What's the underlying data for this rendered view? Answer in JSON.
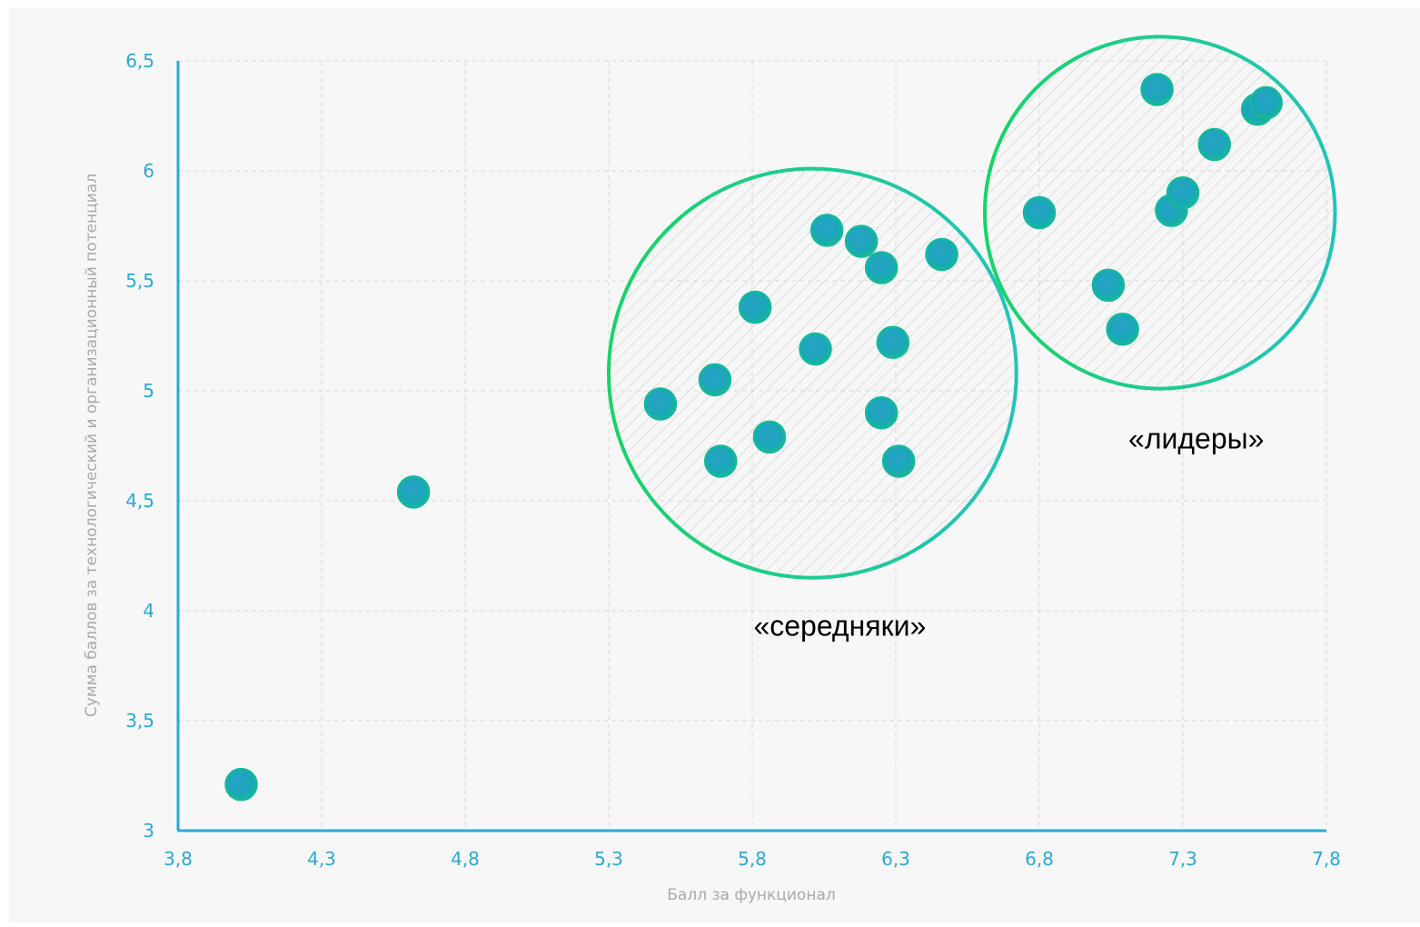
{
  "colors": {
    "panel": "#f7f7f7",
    "axis": "#2aa9d0",
    "grid": "#d9d9d9",
    "tick_text": "#2aa9d0",
    "axis_title": "#a9a9a9",
    "point_inner": "#2aa3c9",
    "point_outer": "#16b89a",
    "ring_left": "#1ad36a",
    "ring_right": "#22c4b8",
    "hatch": "#cfcfcf"
  },
  "chart_data": {
    "type": "scatter",
    "title": "",
    "xlabel": "Балл за функционал",
    "ylabel": "Сумма баллов за технологический и организационный потенциал",
    "xlim": [
      3.8,
      7.8
    ],
    "ylim": [
      3,
      6.5
    ],
    "xticks": [
      "3,8",
      "4,3",
      "4,8",
      "5,3",
      "5,8",
      "6,3",
      "6,8",
      "7,3",
      "7,8"
    ],
    "yticks": [
      "3",
      "3,5",
      "4",
      "4,5",
      "5",
      "5,5",
      "6",
      "6,5"
    ],
    "grid": true,
    "points": [
      {
        "x": 4.02,
        "y": 3.21
      },
      {
        "x": 4.62,
        "y": 4.54
      },
      {
        "x": 5.48,
        "y": 4.94
      },
      {
        "x": 5.67,
        "y": 5.05
      },
      {
        "x": 5.69,
        "y": 4.68
      },
      {
        "x": 5.81,
        "y": 5.38
      },
      {
        "x": 5.86,
        "y": 4.79
      },
      {
        "x": 6.02,
        "y": 5.19
      },
      {
        "x": 6.06,
        "y": 5.73
      },
      {
        "x": 6.18,
        "y": 5.68
      },
      {
        "x": 6.25,
        "y": 5.56
      },
      {
        "x": 6.25,
        "y": 4.9
      },
      {
        "x": 6.29,
        "y": 5.22
      },
      {
        "x": 6.31,
        "y": 4.68
      },
      {
        "x": 6.46,
        "y": 5.62
      },
      {
        "x": 6.8,
        "y": 5.81
      },
      {
        "x": 7.04,
        "y": 5.48
      },
      {
        "x": 7.09,
        "y": 5.28
      },
      {
        "x": 7.21,
        "y": 6.37
      },
      {
        "x": 7.26,
        "y": 5.82
      },
      {
        "x": 7.3,
        "y": 5.9
      },
      {
        "x": 7.41,
        "y": 6.12
      },
      {
        "x": 7.56,
        "y": 6.28
      },
      {
        "x": 7.59,
        "y": 6.31
      }
    ],
    "clusters": [
      {
        "label": "«середняки»",
        "cx": 6.01,
        "cy": 5.08,
        "rx": 0.71,
        "ry": 0.93
      },
      {
        "label": "«лидеры»",
        "cx": 7.22,
        "cy": 5.81,
        "rx": 0.61,
        "ry": 0.8
      }
    ]
  }
}
